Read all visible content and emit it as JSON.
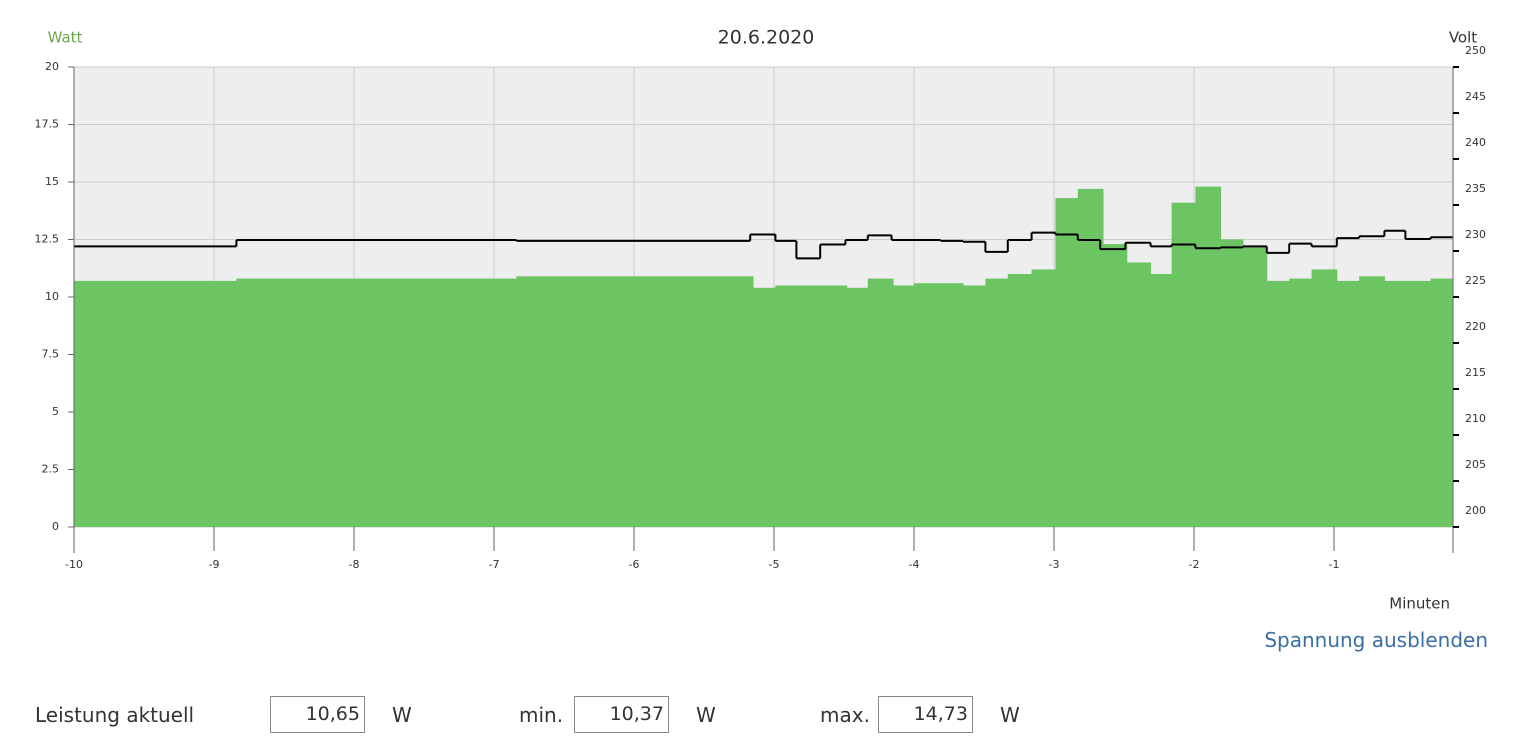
{
  "chart_data": {
    "type": "step",
    "title": "20.6.2020",
    "y_label": "Watt",
    "y2_label": "Volt",
    "x_label": "Minuten",
    "xlim": [
      -10,
      -0.15
    ],
    "xticks": [
      -10,
      -9,
      -8,
      -7,
      -6,
      -5,
      -4,
      -3,
      -2,
      -1
    ],
    "ylim": [
      0,
      20
    ],
    "yticks": [
      0,
      2.5,
      5,
      7.5,
      10,
      12.5,
      15,
      17.5,
      20
    ],
    "y2lim": [
      200,
      250
    ],
    "y2ticks": [
      200,
      205,
      210,
      215,
      220,
      225,
      230,
      235,
      240,
      245,
      250
    ],
    "grid": true,
    "series": [
      {
        "type": "area",
        "color": "#6cc462",
        "x": [
          -10,
          -8.84,
          -6.84,
          -5.15,
          -4.99,
          -4.48,
          -4.33,
          -4.15,
          -4.0,
          -3.65,
          -3.49,
          -3.33,
          -3.16,
          -2.99,
          -2.83,
          -2.65,
          -2.48,
          -2.31,
          -2.16,
          -1.99,
          -1.81,
          -1.65,
          -1.48,
          -1.32,
          -1.16,
          -0.98,
          -0.82,
          -0.64,
          -0.31
        ],
        "values": [
          10.7,
          10.8,
          10.9,
          10.4,
          10.5,
          10.4,
          10.8,
          10.5,
          10.6,
          10.5,
          10.8,
          11.0,
          11.2,
          14.3,
          14.7,
          12.3,
          11.5,
          11.0,
          14.1,
          14.8,
          12.5,
          12.2,
          10.7,
          10.8,
          11.2,
          10.7,
          10.9,
          10.7,
          10.8
        ]
      },
      {
        "type": "line",
        "color": "#000000",
        "axis": "y2",
        "x": [
          -10,
          -8.84,
          -6.84,
          -5.17,
          -4.99,
          -4.84,
          -4.67,
          -4.49,
          -4.33,
          -4.16,
          -3.81,
          -3.65,
          -3.49,
          -3.33,
          -3.16,
          -2.99,
          -2.83,
          -2.67,
          -2.49,
          -2.31,
          -2.16,
          -1.99,
          -1.81,
          -1.65,
          -1.48,
          -1.32,
          -1.16,
          -0.98,
          -0.82,
          -0.64,
          -0.49,
          -0.31
        ],
        "values": [
          230.5,
          231.2,
          231.1,
          231.8,
          231.1,
          229.2,
          230.7,
          231.2,
          231.7,
          231.2,
          231.1,
          231.0,
          229.9,
          231.2,
          232.0,
          231.8,
          231.2,
          230.2,
          230.9,
          230.5,
          230.7,
          230.3,
          230.4,
          230.5,
          229.8,
          230.8,
          230.5,
          231.4,
          231.6,
          232.2,
          231.3,
          231.5
        ]
      }
    ]
  },
  "controls": {
    "toggle": "Spannung ausblenden",
    "fields": [
      {
        "label": "Leistung aktuell",
        "value": "10,65",
        "unit": "W"
      },
      {
        "label": "min.",
        "value": "10,37",
        "unit": "W"
      },
      {
        "label": "max.",
        "value": "14,73",
        "unit": "W"
      }
    ]
  }
}
